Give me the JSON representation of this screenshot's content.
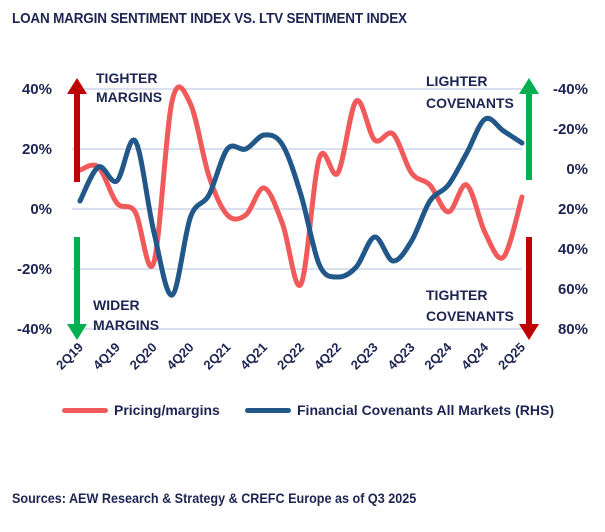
{
  "chart_data": {
    "type": "line",
    "title": "LOAN MARGIN SENTIMENT INDEX VS. LTV SENTIMENT INDEX",
    "x": [
      "2Q19",
      "3Q19",
      "4Q19",
      "1Q20",
      "2Q20",
      "3Q20",
      "4Q20",
      "1Q21",
      "2Q21",
      "3Q21",
      "4Q21",
      "1Q22",
      "2Q22",
      "3Q22",
      "4Q22",
      "1Q23",
      "2Q23",
      "3Q23",
      "4Q23",
      "1Q24",
      "2Q24",
      "3Q24",
      "4Q24",
      "1Q25",
      "2Q25"
    ],
    "x_tick_labels": [
      "2Q19",
      "4Q19",
      "2Q20",
      "4Q20",
      "2Q21",
      "4Q21",
      "2Q22",
      "4Q22",
      "2Q23",
      "4Q23",
      "2Q24",
      "4Q24",
      "2Q25"
    ],
    "series": [
      {
        "name": "Pricing/margins",
        "axis": "left",
        "color": "#f05a5b",
        "values": [
          13,
          14,
          2,
          -1,
          -18,
          36,
          35,
          11,
          -2,
          -2,
          7,
          -5,
          -25,
          17,
          12,
          36,
          23,
          25,
          12,
          8,
          -1,
          8,
          -8,
          -16,
          4
        ]
      },
      {
        "name": "Financial Covenants All Markets (RHS)",
        "axis": "right",
        "color": "#22578a",
        "values": [
          16,
          -1,
          6,
          -14,
          31,
          63,
          24,
          13,
          -10,
          -10,
          -17,
          -12,
          13,
          48,
          54,
          49,
          34,
          46,
          36,
          16,
          8,
          -8,
          -25,
          -19,
          -13
        ]
      }
    ],
    "left_axis": {
      "ylim": [
        -40,
        40
      ],
      "ticks": [
        "40%",
        "20%",
        "0%",
        "-20%",
        "-40%"
      ],
      "tick_values": [
        40,
        20,
        0,
        -20,
        -40
      ]
    },
    "right_axis": {
      "ylim": [
        -40,
        80
      ],
      "inverted": true,
      "ticks": [
        "-40%",
        "-20%",
        "0%",
        "20%",
        "40%",
        "60%",
        "80%"
      ],
      "tick_values": [
        -40,
        -20,
        0,
        20,
        40,
        60,
        80
      ]
    },
    "grid": true,
    "legend_position": "bottom",
    "annotations": [
      {
        "text_lines": [
          "TIGHTER",
          "MARGINS"
        ],
        "arrow": "up",
        "color": "#c00000",
        "side": "left"
      },
      {
        "text_lines": [
          "WIDER",
          "MARGINS"
        ],
        "arrow": "down",
        "color": "#00b050",
        "side": "left"
      },
      {
        "text_lines": [
          "LIGHTER",
          "COVENANTS"
        ],
        "arrow": "up",
        "color": "#00b050",
        "side": "right"
      },
      {
        "text_lines": [
          "TIGHTER",
          "COVENANTS"
        ],
        "arrow": "down",
        "color": "#c00000",
        "side": "right"
      }
    ]
  },
  "source_note": "Sources: AEW Research & Strategy & CREFC Europe as of Q3 2025",
  "colors": {
    "text": "#1d2451",
    "grid": "#cdd5ea"
  }
}
